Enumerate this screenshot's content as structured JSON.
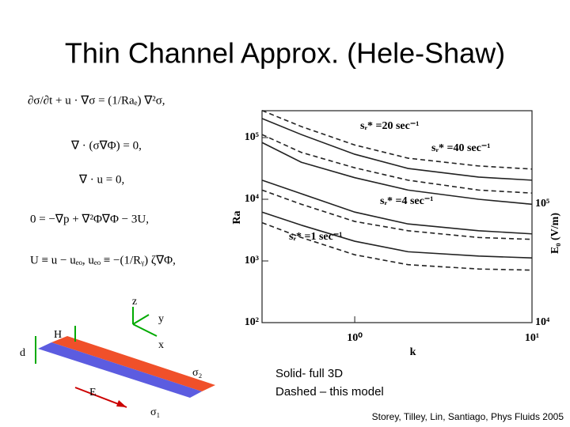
{
  "title": "Thin Channel Approx. (Hele-Shaw)",
  "equations": [
    "∂σ/∂t + u · ∇σ = (1/Raₑ) ∇²σ,",
    "∇ · (σ∇Φ) = 0,",
    "∇ · u = 0,",
    "0 = −∇p + ∇²Φ∇Φ − 3U,",
    "U ≡ u − uₑₒ,   uₑₒ ≡ −(1/Rᵧ) ζ∇Φ,"
  ],
  "diagram": {
    "labels": [
      "z",
      "y",
      "x",
      "H",
      "d",
      "σ₂",
      "E",
      "σ₁"
    ]
  },
  "notes": [
    "Solid- full 3D",
    "Dashed – this model"
  ],
  "citation": "Storey, Tilley, Lin, Santiago, Phys Fluids 2005",
  "chart_data": {
    "type": "line",
    "log_x": true,
    "log_y": true,
    "x_label": "k",
    "y_label": "Ra",
    "y2_label": "E₀ (V/m)",
    "x": [
      0.3,
      0.5,
      1,
      2,
      5,
      10
    ],
    "xlim": [
      0.3,
      10
    ],
    "xticks": [
      {
        "value": 1,
        "label": "10⁰"
      },
      {
        "value": 10,
        "label": "10¹"
      }
    ],
    "ylim": [
      100,
      273000
    ],
    "yticks": [
      {
        "value": 100,
        "label": "10²"
      },
      {
        "value": 1000,
        "label": "10³"
      },
      {
        "value": 10000,
        "label": "10⁴"
      },
      {
        "value": 100000,
        "label": "10⁵"
      }
    ],
    "y2lim": [
      10000,
      612000
    ],
    "y2ticks": [
      {
        "value": 10000,
        "label": "10⁴"
      },
      {
        "value": 100000,
        "label": "10⁵"
      }
    ],
    "series": [
      {
        "color": "#222222",
        "dash": false,
        "values": [
          204000,
          112000,
          53700,
          31600,
          22900,
          20400
        ]
      },
      {
        "color": "#222222",
        "dash": true,
        "values": [
          275000,
          151000,
          75900,
          46400,
          34700,
          30900
        ]
      },
      {
        "color": "#222222",
        "dash": false,
        "values": [
          83200,
          39800,
          22400,
          14100,
          10000,
          8300
        ]
      },
      {
        "color": "#222222",
        "dash": true,
        "values": [
          112000,
          57500,
          32400,
          20400,
          14100,
          12600
        ]
      },
      {
        "color": "#222222",
        "dash": false,
        "values": [
          20400,
          12300,
          6200,
          3980,
          3090,
          2750
        ]
      },
      {
        "color": "#222222",
        "dash": true,
        "values": [
          14100,
          8300,
          4370,
          3090,
          2400,
          2240
        ]
      },
      {
        "color": "#222222",
        "dash": false,
        "values": [
          6200,
          3800,
          2090,
          1410,
          1200,
          1120
        ]
      },
      {
        "color": "#222222",
        "dash": true,
        "values": [
          4170,
          2400,
          1260,
          870,
          740,
          710
        ]
      }
    ],
    "annotations": [
      "sᵣ* =20 sec⁻¹",
      "sᵣ* =40 sec⁻¹",
      "sᵣ* =4 sec⁻¹",
      "sᵣ* =1 sec⁻¹"
    ]
  }
}
